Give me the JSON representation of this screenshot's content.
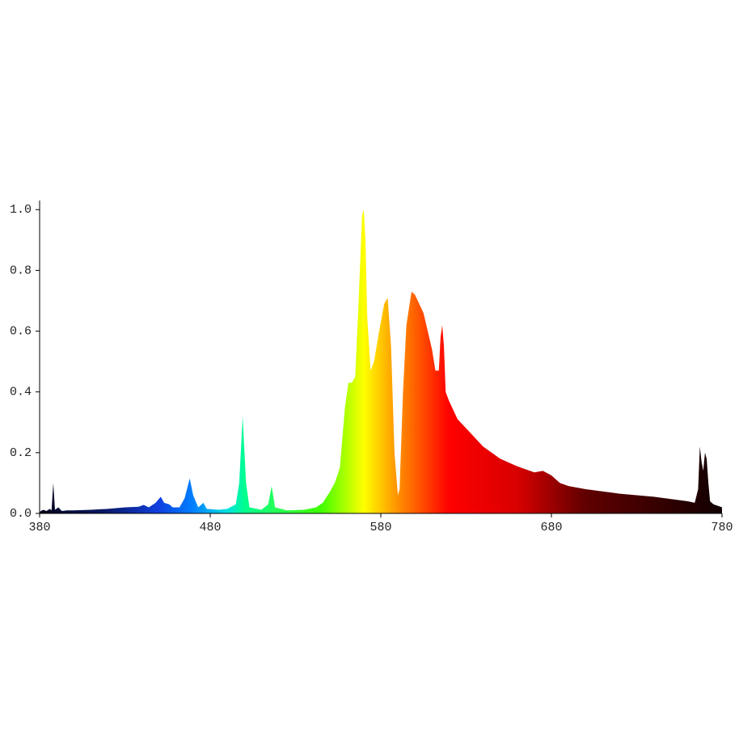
{
  "chart_data": {
    "type": "area",
    "x": [
      380,
      382,
      384,
      386,
      387,
      388,
      389,
      391,
      393,
      396,
      400,
      410,
      420,
      430,
      438,
      441,
      444,
      448,
      451,
      453,
      456,
      458,
      462,
      465,
      468,
      470,
      473,
      476,
      478,
      485,
      490,
      495,
      497,
      499,
      501,
      503,
      510,
      514,
      516,
      518,
      525,
      535,
      542,
      546,
      550,
      553,
      556,
      559,
      561,
      563,
      565,
      567,
      569,
      570,
      571,
      572,
      574,
      576,
      579,
      582,
      584,
      586,
      588,
      590,
      591,
      593,
      595,
      598,
      600,
      605,
      610,
      612,
      614,
      615,
      616,
      617,
      618,
      620,
      625,
      630,
      640,
      650,
      660,
      665,
      670,
      675,
      680,
      685,
      690,
      700,
      720,
      740,
      760,
      764,
      766,
      767,
      768,
      769,
      770,
      771,
      772,
      773,
      775,
      780
    ],
    "values": [
      0.005,
      0.012,
      0.008,
      0.015,
      0.01,
      0.1,
      0.012,
      0.02,
      0.008,
      0.01,
      0.01,
      0.012,
      0.015,
      0.02,
      0.022,
      0.028,
      0.02,
      0.035,
      0.055,
      0.035,
      0.03,
      0.02,
      0.02,
      0.05,
      0.115,
      0.06,
      0.02,
      0.035,
      0.015,
      0.012,
      0.015,
      0.03,
      0.1,
      0.32,
      0.1,
      0.02,
      0.012,
      0.03,
      0.09,
      0.02,
      0.01,
      0.012,
      0.02,
      0.035,
      0.07,
      0.1,
      0.15,
      0.35,
      0.43,
      0.43,
      0.45,
      0.7,
      0.98,
      1.0,
      0.9,
      0.65,
      0.47,
      0.5,
      0.6,
      0.69,
      0.71,
      0.55,
      0.2,
      0.06,
      0.08,
      0.4,
      0.62,
      0.73,
      0.72,
      0.66,
      0.54,
      0.47,
      0.47,
      0.58,
      0.62,
      0.55,
      0.4,
      0.37,
      0.31,
      0.28,
      0.22,
      0.18,
      0.155,
      0.145,
      0.135,
      0.14,
      0.125,
      0.1,
      0.09,
      0.08,
      0.065,
      0.055,
      0.04,
      0.035,
      0.08,
      0.22,
      0.17,
      0.14,
      0.2,
      0.18,
      0.1,
      0.04,
      0.03,
      0.02
    ],
    "xlim": [
      380,
      780
    ],
    "ylim": [
      0,
      1.03
    ],
    "xticks": [
      380,
      480,
      580,
      680,
      780
    ],
    "yticks": [
      {
        "value": 0,
        "label": "0.0"
      },
      0.2,
      0.4,
      0.6,
      0.8,
      {
        "value": 1,
        "label": "1.0"
      }
    ]
  }
}
